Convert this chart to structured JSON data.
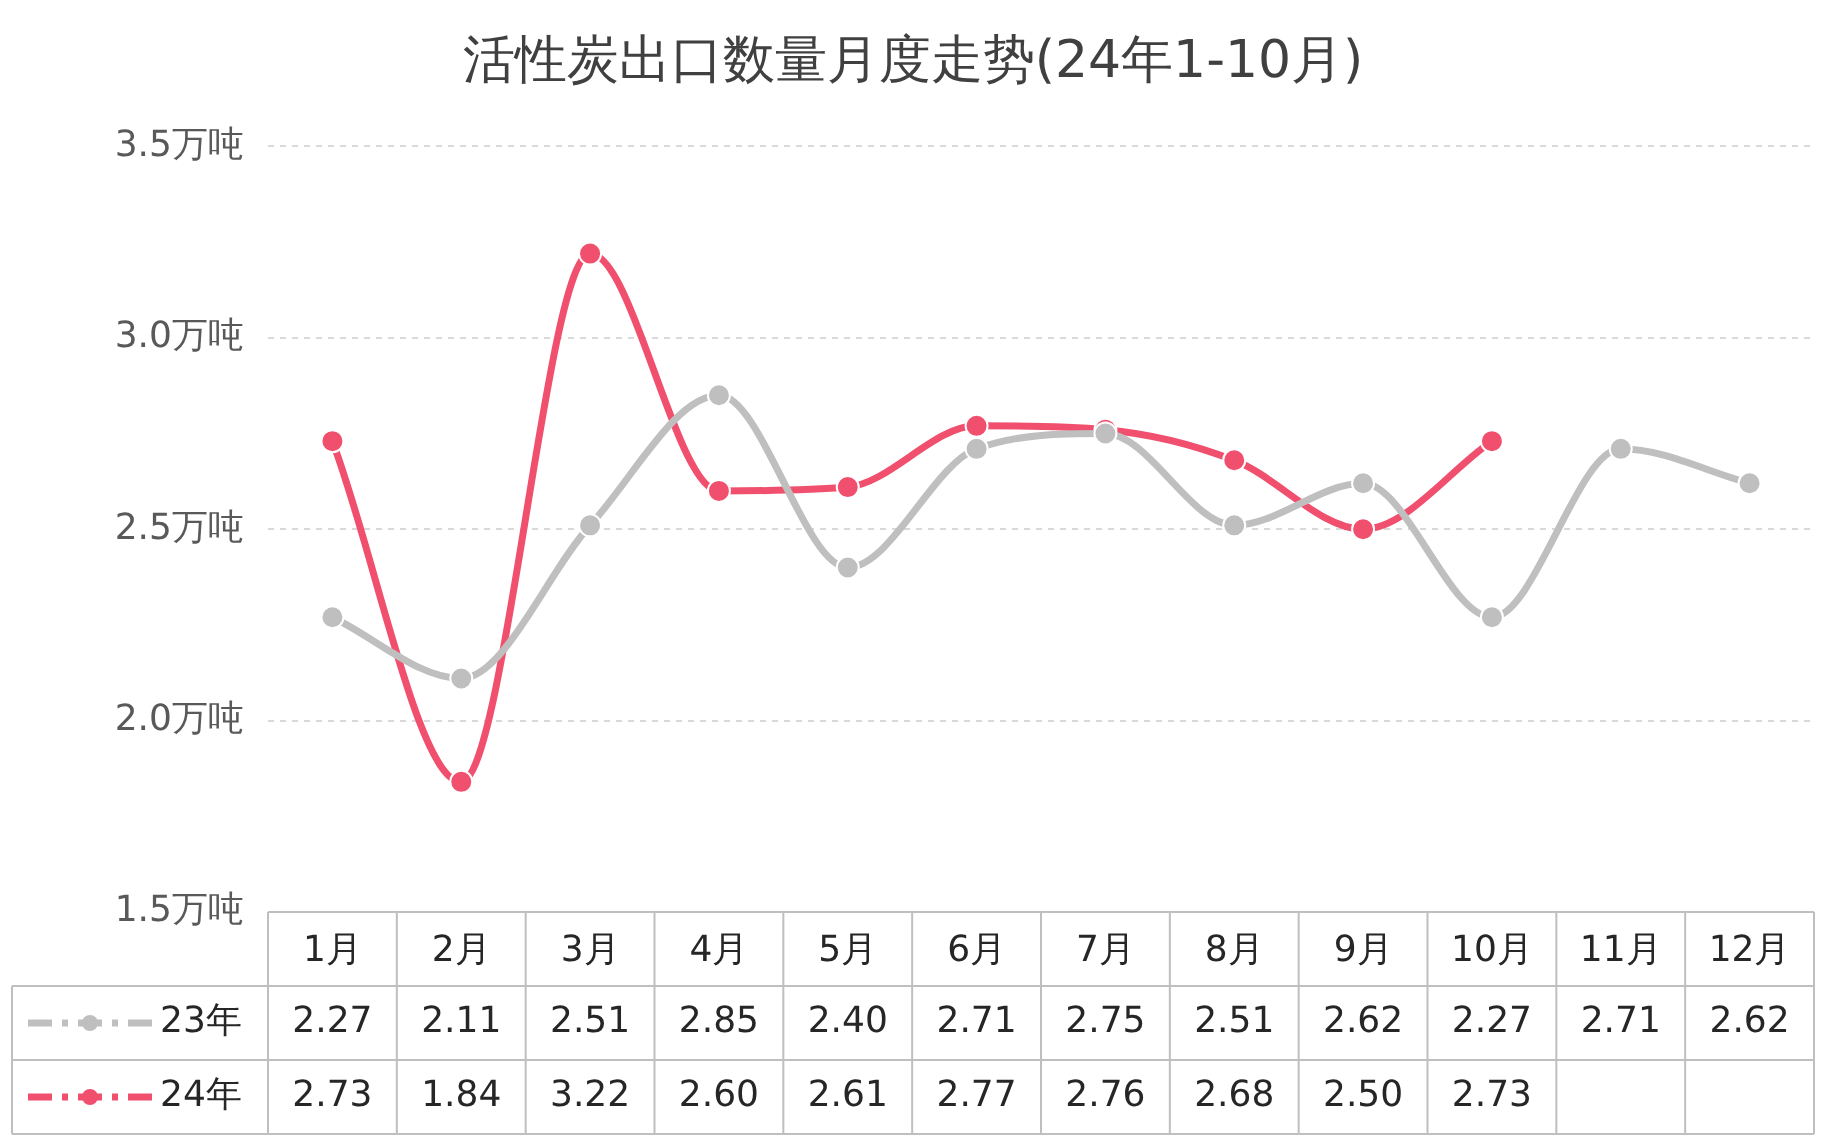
{
  "chart_data": {
    "type": "line",
    "title": "活性炭出口数量月度走势(24年1-10月)",
    "categories": [
      "1月",
      "2月",
      "3月",
      "4月",
      "5月",
      "6月",
      "7月",
      "8月",
      "9月",
      "10月",
      "11月",
      "12月"
    ],
    "series": [
      {
        "name": "23年",
        "color": "#bfbfbf",
        "values": [
          2.27,
          2.11,
          2.51,
          2.85,
          2.4,
          2.71,
          2.75,
          2.51,
          2.62,
          2.27,
          2.71,
          2.62
        ],
        "value_labels": [
          "2.27",
          "2.11",
          "2.51",
          "2.85",
          "2.40",
          "2.71",
          "2.75",
          "2.51",
          "2.62",
          "2.27",
          "2.71",
          "2.62"
        ]
      },
      {
        "name": "24年",
        "color": "#f0506e",
        "values": [
          2.73,
          1.84,
          3.22,
          2.6,
          2.61,
          2.77,
          2.76,
          2.68,
          2.5,
          2.73,
          null,
          null
        ],
        "value_labels": [
          "2.73",
          "1.84",
          "3.22",
          "2.60",
          "2.61",
          "2.77",
          "2.76",
          "2.68",
          "2.50",
          "2.73",
          null,
          null
        ]
      }
    ],
    "ylim": [
      1.5,
      3.5
    ],
    "yticks": [
      {
        "value": 1.5,
        "label": "1.5万吨"
      },
      {
        "value": 2,
        "label": "2.0万吨"
      },
      {
        "value": 2.5,
        "label": "2.5万吨"
      },
      {
        "value": 3,
        "label": "3.0万吨"
      },
      {
        "value": 3.5,
        "label": "3.5万吨"
      }
    ],
    "grid": "y",
    "legend": "bottom",
    "marker": "circle",
    "line_style": "solid"
  }
}
